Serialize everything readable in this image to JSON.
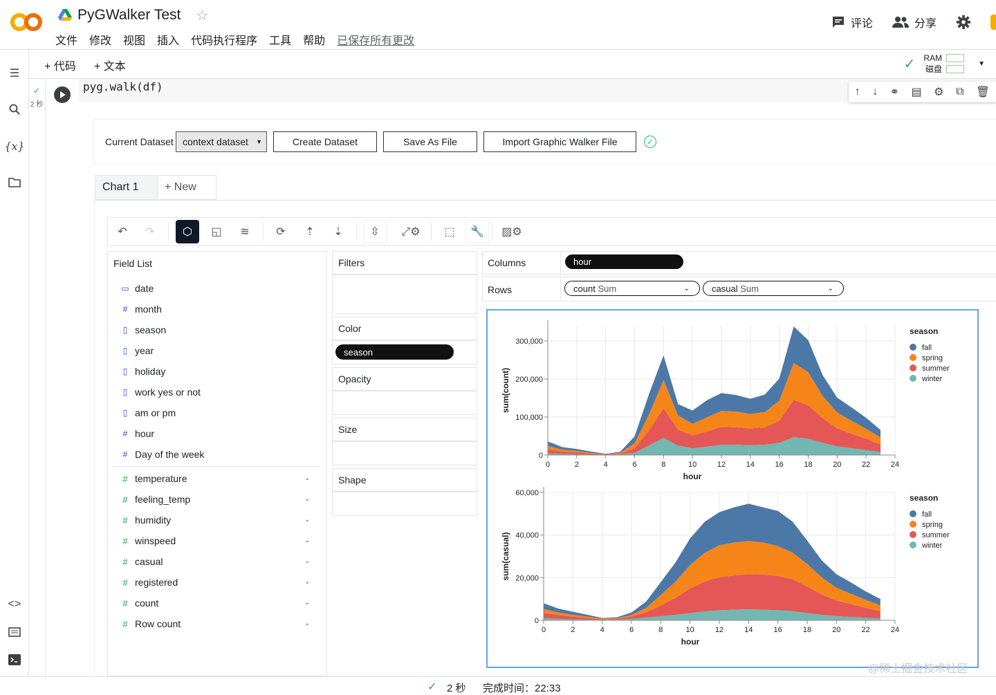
{
  "notebook": {
    "title": "PyGWalker Test",
    "menu": [
      "文件",
      "修改",
      "视图",
      "插入",
      "代码执行程序",
      "工具",
      "帮助"
    ],
    "saved_status": "已保存所有更改",
    "comment_label": "评论",
    "share_label": "分享"
  },
  "toolbar": {
    "add_code": "+ 代码",
    "add_text": "+ 文本",
    "ram_label": "RAM",
    "disk_label": "磁盘"
  },
  "cell": {
    "code": "pyg.walk(df)",
    "exec_time": "2 秒"
  },
  "pygwalker": {
    "current_dataset_label": "Current Dataset",
    "dataset_value": "context dataset",
    "create_dataset": "Create Dataset",
    "save_as_file": "Save As File",
    "import_file": "Import Graphic Walker File",
    "tabs": [
      "Chart 1",
      "+ New"
    ],
    "field_list_title": "Field List",
    "dimensions": [
      {
        "icon": "calendar-icon",
        "name": "date"
      },
      {
        "icon": "hash-icon",
        "name": "month"
      },
      {
        "icon": "document-icon",
        "name": "season"
      },
      {
        "icon": "document-icon",
        "name": "year"
      },
      {
        "icon": "document-icon",
        "name": "holiday"
      },
      {
        "icon": "document-icon",
        "name": "work yes or not"
      },
      {
        "icon": "document-icon",
        "name": "am or pm"
      },
      {
        "icon": "hash-icon",
        "name": "hour"
      },
      {
        "icon": "hash-icon",
        "name": "Day of the week"
      }
    ],
    "measures": [
      "temperature",
      "feeling_temp",
      "humidity",
      "winspeed",
      "casual",
      "registered",
      "count",
      "Row count"
    ],
    "encodings": {
      "filters": "Filters",
      "color": "Color",
      "color_field": "season",
      "opacity": "Opacity",
      "size": "Size",
      "shape": "Shape"
    },
    "shelves": {
      "columns_label": "Columns",
      "columns_field": "hour",
      "rows_label": "Rows",
      "rows_fields": [
        {
          "field": "count",
          "agg": "Sum"
        },
        {
          "field": "casual",
          "agg": "Sum"
        }
      ]
    }
  },
  "chart_data": [
    {
      "type": "area",
      "stacked": true,
      "x": [
        0,
        1,
        2,
        3,
        4,
        5,
        6,
        7,
        8,
        9,
        10,
        11,
        12,
        13,
        14,
        15,
        16,
        17,
        18,
        19,
        20,
        21,
        22,
        23
      ],
      "xlabel": "hour",
      "ylabel": "sum(count)",
      "ylim": [
        0,
        340000
      ],
      "yticks": [
        0,
        100000,
        200000,
        300000
      ],
      "yticklabels": [
        "0",
        "100,000",
        "200,000",
        "300,000"
      ],
      "xticks": [
        0,
        2,
        4,
        6,
        8,
        10,
        12,
        14,
        16,
        18,
        20,
        22,
        24
      ],
      "legend_title": "season",
      "legend_position": "right",
      "series": [
        {
          "name": "winter",
          "color": "#72b7b2",
          "values": [
            5000,
            3000,
            2000,
            1000,
            500,
            1500,
            6000,
            25000,
            45000,
            25000,
            18000,
            22000,
            27000,
            27000,
            26000,
            27000,
            32000,
            47000,
            43000,
            32000,
            23000,
            18000,
            13000,
            8000
          ]
        },
        {
          "name": "summer",
          "color": "#e45756",
          "values": [
            10000,
            6000,
            5000,
            3000,
            1000,
            2000,
            12000,
            40000,
            78000,
            42000,
            34000,
            40000,
            47000,
            46000,
            44000,
            46000,
            58000,
            98000,
            88000,
            65000,
            47000,
            38000,
            30000,
            20000
          ]
        },
        {
          "name": "spring",
          "color": "#f58518",
          "values": [
            9000,
            5000,
            4000,
            2000,
            1000,
            2000,
            13000,
            42000,
            74000,
            37000,
            30000,
            37000,
            42000,
            41000,
            38000,
            40000,
            53000,
            97000,
            87000,
            58000,
            42000,
            34000,
            26000,
            18000
          ]
        },
        {
          "name": "fall",
          "color": "#4c78a8",
          "values": [
            12000,
            7000,
            5000,
            3000,
            1000,
            3000,
            18000,
            54000,
            65000,
            30000,
            35000,
            45000,
            47000,
            44000,
            40000,
            46000,
            58000,
            96000,
            84000,
            55000,
            39000,
            35000,
            29000,
            20000
          ]
        }
      ]
    },
    {
      "type": "area",
      "stacked": true,
      "x": [
        0,
        1,
        2,
        3,
        4,
        5,
        6,
        7,
        8,
        9,
        10,
        11,
        12,
        13,
        14,
        15,
        16,
        17,
        18,
        19,
        20,
        21,
        22,
        23
      ],
      "xlabel": "hour",
      "ylabel": "sum(casual)",
      "ylim": [
        0,
        60000
      ],
      "yticks": [
        0,
        20000,
        40000,
        60000
      ],
      "yticklabels": [
        "0",
        "20,000",
        "40,000",
        "60,000"
      ],
      "xticks": [
        0,
        2,
        4,
        6,
        8,
        10,
        12,
        14,
        16,
        18,
        20,
        22,
        24
      ],
      "legend_title": "season",
      "legend_position": "right",
      "series": [
        {
          "name": "winter",
          "color": "#72b7b2",
          "values": [
            1000,
            700,
            500,
            300,
            200,
            300,
            700,
            1300,
            1900,
            2600,
            3400,
            4200,
            4700,
            5000,
            5200,
            5000,
            4800,
            4300,
            3400,
            2600,
            2000,
            1600,
            1200,
            800
          ]
        },
        {
          "name": "summer",
          "color": "#e45756",
          "values": [
            2500,
            1800,
            1200,
            800,
            300,
            400,
            1000,
            2500,
            5000,
            8000,
            11500,
            14000,
            15500,
            16000,
            16500,
            16500,
            16000,
            15000,
            12500,
            9500,
            7300,
            6000,
            4700,
            3500
          ]
        },
        {
          "name": "spring",
          "color": "#f58518",
          "values": [
            1800,
            1200,
            900,
            600,
            300,
            300,
            800,
            2000,
            5000,
            7500,
            11000,
            13500,
            15000,
            15500,
            15500,
            15000,
            14000,
            12500,
            10500,
            8000,
            6000,
            4800,
            3700,
            2700
          ]
        },
        {
          "name": "fall",
          "color": "#4c78a8",
          "values": [
            2700,
            1800,
            1400,
            900,
            300,
            400,
            1200,
            3000,
            6000,
            9000,
            12500,
            14500,
            15500,
            16500,
            17500,
            16500,
            16500,
            14500,
            11000,
            8000,
            6300,
            5300,
            4000,
            3000
          ]
        }
      ]
    }
  ],
  "status": {
    "duration": "2 秒",
    "completed": "完成时间：22:33"
  },
  "watermark": "@稀土掘金技术社区"
}
